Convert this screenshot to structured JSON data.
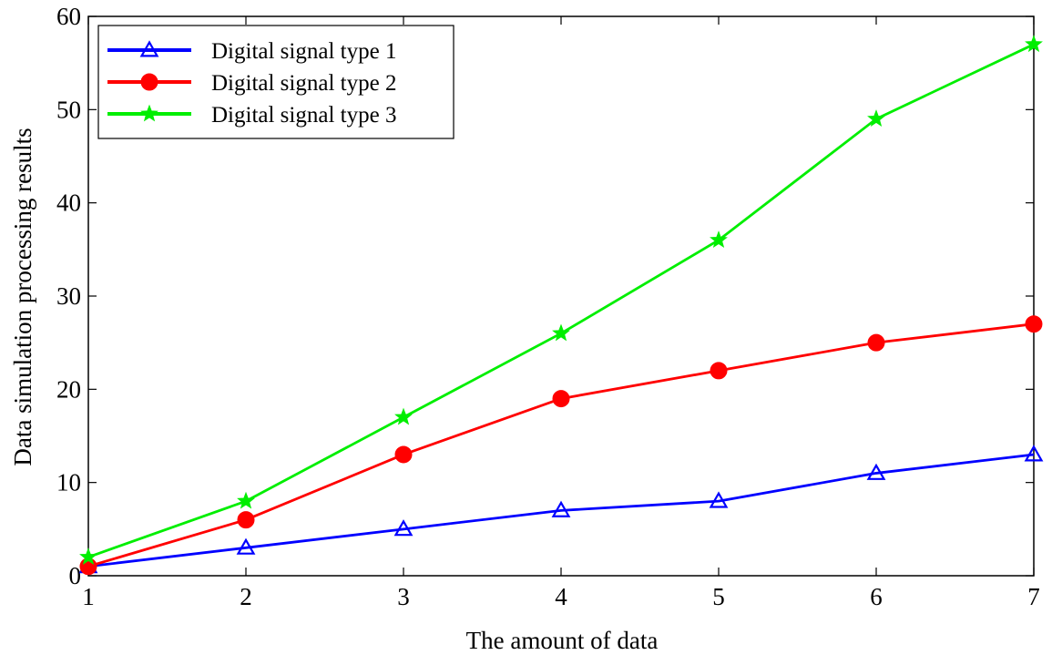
{
  "chart_data": {
    "type": "line",
    "title": "",
    "xlabel": "The amount of data",
    "ylabel": "Data simulation processing results",
    "xlim": [
      1,
      7
    ],
    "ylim": [
      0,
      60
    ],
    "x": [
      1,
      2,
      3,
      4,
      5,
      6,
      7
    ],
    "xticks": [
      "1",
      "2",
      "3",
      "4",
      "5",
      "6",
      "7"
    ],
    "yticks": [
      "0",
      "10",
      "20",
      "30",
      "40",
      "50",
      "60"
    ],
    "grid": false,
    "legend_position": "top-left",
    "series": [
      {
        "name": "Digital signal type 1",
        "color": "#0000ff",
        "marker": "triangle-open",
        "values": [
          1,
          3,
          5,
          7,
          8,
          11,
          13
        ]
      },
      {
        "name": "Digital signal type 2",
        "color": "#ff0000",
        "marker": "circle-filled",
        "values": [
          1,
          6,
          13,
          19,
          22,
          25,
          27
        ]
      },
      {
        "name": "Digital signal type 3",
        "color": "#00ee00",
        "marker": "star",
        "values": [
          2,
          8,
          17,
          26,
          36,
          49,
          57
        ]
      }
    ]
  }
}
